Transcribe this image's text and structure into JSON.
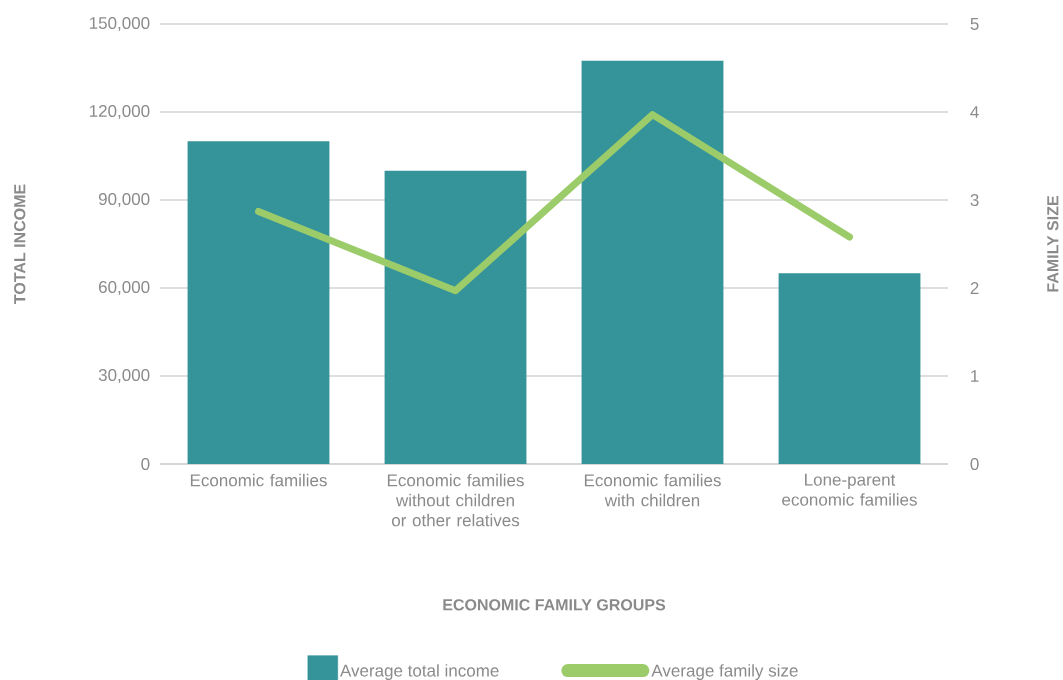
{
  "chart_data": {
    "type": "bar",
    "xlabel": "ECONOMIC FAMILY GROUPS",
    "ylabel": "TOTAL INCOME",
    "y2label": "FAMILY SIZE",
    "categories": [
      "Economic families",
      "Economic families without children or other relatives",
      "Economic families with children",
      "Lone-parent economic families"
    ],
    "series": [
      {
        "name": "Average total income",
        "color": "#35939a",
        "values": [
          110000,
          100000,
          137500,
          65000
        ]
      },
      {
        "name": "Average family size",
        "type": "line",
        "axis": "y2",
        "color": "#9ccc6a",
        "values": [
          2.87,
          1.97,
          3.97,
          2.58
        ]
      }
    ],
    "ylim": [
      0,
      150000
    ],
    "yticks": [
      0,
      {
        "value": 30000,
        "label": "30,000"
      },
      {
        "value": 60000,
        "label": "60,000"
      },
      {
        "value": 90000,
        "label": "90,000"
      },
      {
        "value": 120000,
        "label": "120,000"
      },
      {
        "value": 150000,
        "label": "150,000"
      }
    ],
    "y2lim": [
      0,
      5
    ],
    "y2ticks": [
      0,
      1,
      2,
      3,
      4,
      5
    ],
    "grid": "y",
    "legend": "bottom"
  }
}
